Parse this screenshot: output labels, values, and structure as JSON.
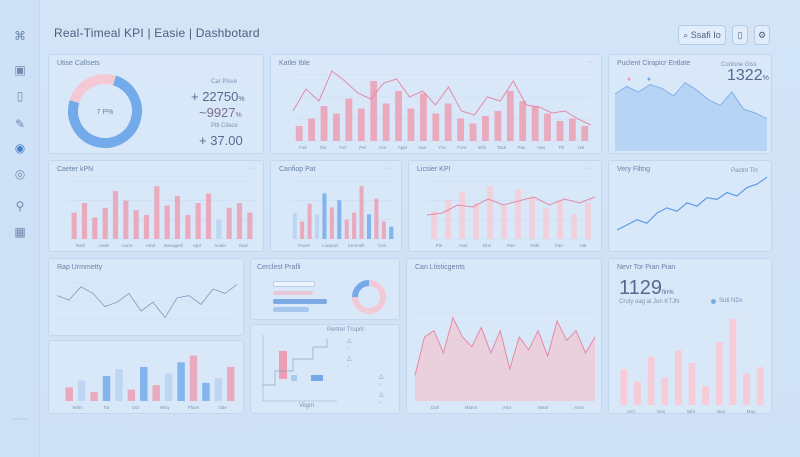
{
  "app": {
    "title": "Real-Timeal KPI | Easie | Dashbotard"
  },
  "header": {
    "search_label": "Ssafi Io"
  },
  "cards": {
    "c1": {
      "title": "Utise Callsets",
      "donut_center": "7 P%",
      "label1": "Car Pisve",
      "val1": "+ 22750",
      "unit1": "%",
      "val2": "~9927",
      "unit2": "%",
      "label3": "Piti Cilace",
      "val3": "+ 37.00"
    },
    "c2": {
      "title": "Katlei Ible",
      "labels": [
        "Fall",
        "Tos",
        "Faf",
        "Pel",
        "Ann",
        "Appl",
        "Aan",
        "Ynn",
        "Fore",
        "Iefsl",
        "Tacb",
        "Pav",
        "Hes",
        "Plt",
        "Hol"
      ]
    },
    "c3": {
      "title": "Puclent Cirapicr Entlate",
      "sub": "Cunlsne Glss",
      "value": "1322",
      "unit": "%"
    },
    "c4": {
      "title": "Caeter kPN",
      "labels": [
        "Racl",
        "Aede",
        "Aurm",
        "Amd",
        "Banageril",
        "Apd",
        "Auatn",
        "Nod"
      ]
    },
    "c5": {
      "title": "Canfiop Pat",
      "labels": [
        "Pacet",
        "Loepoel",
        "Cerimell",
        "Cen"
      ]
    },
    "c6": {
      "title": "Licsier KPI",
      "labels": [
        "Pin",
        "Asnl",
        "Dnn",
        "Pan",
        "Fatlr",
        "Fan",
        "Hat"
      ]
    },
    "c7": {
      "title": "Very Filtng",
      "sub": "Pactnt Tin"
    },
    "c8": {
      "title": "Rap Urmmetty"
    },
    "c9": {
      "title": "Cerclest Prafli",
      "mini": [
        "Pilsle Trace"
      ]
    },
    "c10": {
      "title": "Can Ltisticgents",
      "labels": [
        "Dall",
        "Mamn",
        "Anrt",
        "Miral",
        "Anro"
      ]
    },
    "c11": {
      "title": "Nevr Tor Pian Pian",
      "value": "1129",
      "unit": "fin%",
      "sub": "Cruty oag ai Jun KTJN",
      "legend": "Sutl NDs",
      "labels": [
        "Arcr",
        "Gan",
        "Wbt",
        "Nan",
        "Mau"
      ]
    },
    "c12": {
      "labels": [
        "Witm",
        "Tor",
        "Ocl",
        "Wirq",
        "Ffuve",
        "Obe"
      ]
    },
    "c13": {
      "title": "Pertrer Trupril",
      "labels": [
        "Viigrn"
      ]
    }
  },
  "chart_data": [
    {
      "type": "donut",
      "values": [
        75,
        25
      ],
      "center": "7 P%"
    },
    {
      "type": "bar",
      "values": [
        12,
        18,
        28,
        22,
        34,
        26,
        48,
        30,
        40,
        26,
        38,
        22,
        30,
        18,
        14,
        20,
        24,
        40,
        32,
        28,
        22,
        16,
        18,
        12
      ]
    },
    {
      "type": "area",
      "values": [
        60,
        68,
        62,
        70,
        66,
        58,
        72,
        64,
        54,
        48,
        62,
        44,
        40,
        34
      ]
    },
    {
      "type": "bar",
      "values": [
        22,
        30,
        18,
        26,
        40,
        32,
        24,
        20,
        44,
        28,
        36,
        20,
        30,
        38,
        16,
        26,
        30,
        22
      ]
    },
    {
      "type": "bar",
      "values": [
        30,
        20,
        40,
        28,
        52,
        36,
        44,
        22,
        30,
        60,
        28,
        46,
        20,
        14
      ]
    },
    {
      "type": "bar",
      "values": [
        20,
        28,
        34,
        26,
        38,
        24,
        36,
        30,
        22,
        28,
        18,
        26
      ]
    },
    {
      "type": "line",
      "values": [
        20,
        26,
        32,
        28,
        40,
        46,
        42,
        52,
        48,
        58,
        56,
        64,
        60,
        70,
        74,
        82
      ]
    },
    {
      "type": "line",
      "values": [
        34,
        30,
        42,
        36,
        24,
        28,
        36,
        20,
        28,
        14,
        32,
        34,
        26,
        40,
        36,
        44
      ]
    },
    {
      "type": "area",
      "values": [
        16,
        40,
        44,
        30,
        52,
        40,
        34,
        46,
        30,
        44,
        20,
        40,
        32,
        44,
        28,
        50,
        38,
        44,
        30,
        40
      ]
    },
    {
      "type": "bar",
      "values": [
        34,
        22,
        46,
        26,
        52,
        40,
        18,
        60,
        82,
        30,
        36
      ]
    },
    {
      "type": "bar",
      "values": [
        12,
        18,
        8,
        22,
        28,
        10,
        30,
        14,
        24,
        34,
        40,
        16,
        20,
        30
      ]
    }
  ]
}
